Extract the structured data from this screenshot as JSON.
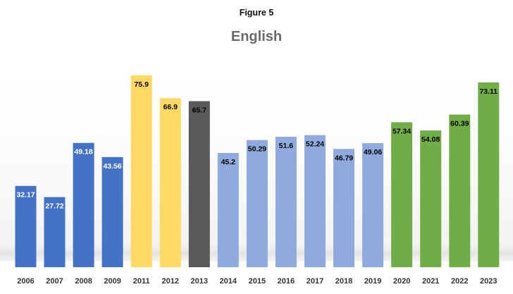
{
  "figure_label": "Figure 5",
  "chart_data": {
    "type": "bar",
    "title": "English",
    "xlabel": "",
    "ylabel": "",
    "ylim": [
      0,
      80
    ],
    "grid": false,
    "legend": false,
    "categories": [
      "2006",
      "2007",
      "2008",
      "2009",
      "2011",
      "2012",
      "2013",
      "2014",
      "2015",
      "2016",
      "2017",
      "2018",
      "2019",
      "2020",
      "2021",
      "2022",
      "2023"
    ],
    "values": [
      32.17,
      27.72,
      49.18,
      43.56,
      75.9,
      66.9,
      65.7,
      45.2,
      50.29,
      51.6,
      52.24,
      46.79,
      49.06,
      57.34,
      54.08,
      60.39,
      73.11
    ],
    "data_labels": [
      "32.17",
      "27.72",
      "49.18",
      "43.56",
      "75.9",
      "66.9",
      "65.7",
      "45.2",
      "50.29",
      "51.6",
      "52.24",
      "46.79",
      "49.06",
      "57.34",
      "54.08",
      "60.39",
      "73.11"
    ],
    "bar_colors": [
      "#4472c4",
      "#4472c4",
      "#4472c4",
      "#4472c4",
      "#ffd966",
      "#ffd966",
      "#595959",
      "#8faadc",
      "#8faadc",
      "#8faadc",
      "#8faadc",
      "#8faadc",
      "#8faadc",
      "#70ad47",
      "#70ad47",
      "#70ad47",
      "#70ad47"
    ],
    "label_colors": [
      "#ffffff",
      "#ffffff",
      "#ffffff",
      "#ffffff",
      "#000000",
      "#000000",
      "#000000",
      "#000000",
      "#000000",
      "#000000",
      "#000000",
      "#000000",
      "#000000",
      "#000000",
      "#000000",
      "#000000",
      "#000000"
    ]
  }
}
